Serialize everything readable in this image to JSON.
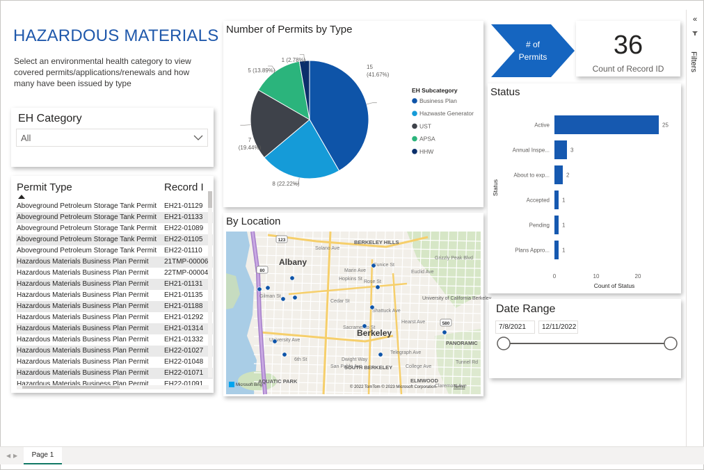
{
  "header": {
    "title": "HAZARDOUS MATERIALS",
    "description": "Select an environmental health category to view covered permits/applications/renewals and how many have been issued by type"
  },
  "slicer": {
    "title": "EH Category",
    "value": "All"
  },
  "table": {
    "columns": [
      "Permit Type",
      "Record I"
    ],
    "rows": [
      {
        "type": "Aboveground Petroleum Storage Tank Permit",
        "record": "EH21-01129"
      },
      {
        "type": "Aboveground Petroleum Storage Tank Permit",
        "record": "EH21-01133"
      },
      {
        "type": "Aboveground Petroleum Storage Tank Permit",
        "record": "EH22-01089"
      },
      {
        "type": "Aboveground Petroleum Storage Tank Permit",
        "record": "EH22-01105"
      },
      {
        "type": "Aboveground Petroleum Storage Tank Permit",
        "record": "EH22-01110"
      },
      {
        "type": "Hazardous Materials Business Plan Permit",
        "record": "21TMP-00006"
      },
      {
        "type": "Hazardous Materials Business Plan Permit",
        "record": "22TMP-00004"
      },
      {
        "type": "Hazardous Materials Business Plan Permit",
        "record": "EH21-01131"
      },
      {
        "type": "Hazardous Materials Business Plan Permit",
        "record": "EH21-01135"
      },
      {
        "type": "Hazardous Materials Business Plan Permit",
        "record": "EH21-01188"
      },
      {
        "type": "Hazardous Materials Business Plan Permit",
        "record": "EH21-01292"
      },
      {
        "type": "Hazardous Materials Business Plan Permit",
        "record": "EH21-01314"
      },
      {
        "type": "Hazardous Materials Business Plan Permit",
        "record": "EH21-01332"
      },
      {
        "type": "Hazardous Materials Business Plan Permit",
        "record": "EH22-01027"
      },
      {
        "type": "Hazardous Materials Business Plan Permit",
        "record": "EH22-01048"
      },
      {
        "type": "Hazardous Materials Business Plan Permit",
        "record": "EH22-01071"
      },
      {
        "type": "Hazardous Materials Business Plan Permit",
        "record": "EH22-01091"
      }
    ]
  },
  "pie": {
    "title": "Number of Permits by Type",
    "legend_title": "EH Subcategory",
    "labels": [
      "15\n(41.67%)",
      "8 (22.22%)",
      "7\n(19.44%)",
      "5 (13.89%)",
      "1 (2.78%)"
    ]
  },
  "map": {
    "title": "By Location",
    "places": [
      "Albany",
      "Berkeley",
      "BERKELEY HILLS",
      "SOUTH BERKELEY",
      "AQUATIC PARK",
      "ELMWOOD",
      "PANORAMIC",
      "University of California Berkeley",
      "Solano Ave",
      "Gilman St",
      "University Ave",
      "Cedar St",
      "Hopkins St",
      "Rose St",
      "Eunice St",
      "Dwight Way",
      "San Pablo Ave",
      "Sacramento St",
      "Shattuck Ave",
      "6th St",
      "Euclid Ave",
      "Grizzly Peak Blvd",
      "Marin Ave",
      "College Ave",
      "Tunnel Rd",
      "Claremont Ave",
      "Hearst Ave",
      "Telegraph Ave"
    ],
    "highway_labels": [
      "123",
      "80",
      "580"
    ],
    "attribution": "© 2022 TomTom  © 2023 Microsoft Corporation",
    "terms": "Terms",
    "bing": "Microsoft Bing"
  },
  "permits_arrow": {
    "label_line1": "# of",
    "label_line2": "Permits"
  },
  "kpi": {
    "value": "36",
    "label": "Count of Record ID"
  },
  "status": {
    "title": "Status",
    "y_axis_title": "Status",
    "x_axis_title": "Count of Status"
  },
  "date_range": {
    "title": "Date Range",
    "start": "7/8/2021",
    "end": "12/11/2022"
  },
  "filters_pane": {
    "label": "Filters",
    "collapse_glyph": "«"
  },
  "pages": {
    "active": "Page 1"
  },
  "colors": {
    "accent": "#1f58ab",
    "bar": "#1659b0",
    "chevron": "#1565c0",
    "pie": [
      "#0e54a8",
      "#159bd8",
      "#3e424a",
      "#2bb47c",
      "#0b2f6b"
    ]
  },
  "chart_data": [
    {
      "type": "pie",
      "title": "Number of Permits by Type",
      "legend_title": "EH Subcategory",
      "categories": [
        "Business Plan",
        "Hazwaste Generator",
        "UST",
        "APSA",
        "HHW"
      ],
      "values": [
        15,
        8,
        7,
        5,
        1
      ],
      "percents": [
        "41.67%",
        "22.22%",
        "19.44%",
        "13.89%",
        "2.78%"
      ],
      "legend_position": "right"
    },
    {
      "type": "bar",
      "orientation": "horizontal",
      "title": "Status",
      "categories": [
        "Active",
        "Annual Inspe...",
        "About to exp...",
        "Accepted",
        "Pending",
        "Plans Appro..."
      ],
      "values": [
        25,
        3,
        2,
        1,
        1,
        1
      ],
      "xlabel": "Count of Status",
      "ylabel": "Status",
      "xticks": [
        0,
        10,
        20
      ],
      "xlim": [
        0,
        26
      ],
      "data_labels": true
    }
  ]
}
